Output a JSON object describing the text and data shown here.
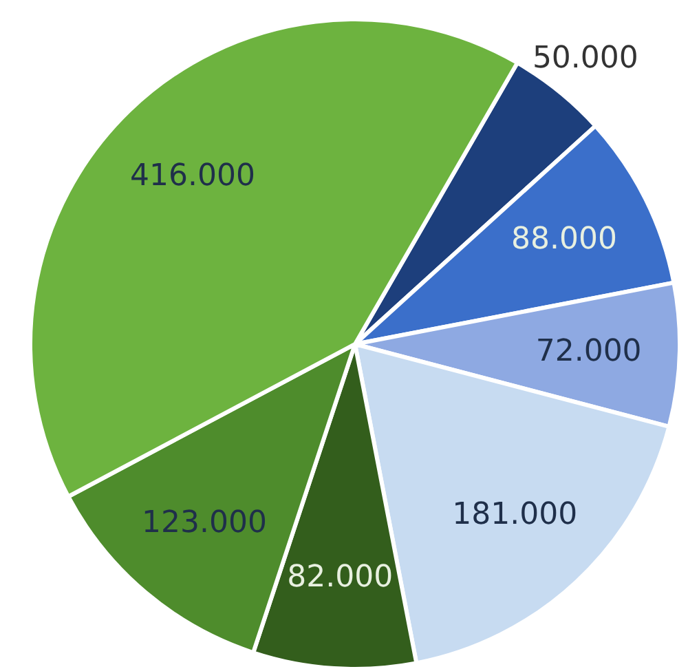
{
  "chart_data": {
    "type": "pie",
    "categories": [
      null,
      null,
      null,
      null,
      null,
      null,
      null
    ],
    "values": [
      50000,
      88000,
      72000,
      181000,
      82000,
      123000,
      416000
    ],
    "value_labels": [
      "50.000",
      "88.000",
      "72.000",
      "181.000",
      "82.000",
      "123.000",
      "416.000"
    ],
    "colors": [
      "#1d3f7c",
      "#3b6fca",
      "#8ea9e2",
      "#c7dbf1",
      "#335e1c",
      "#4e8c2c",
      "#6db33f"
    ]
  }
}
